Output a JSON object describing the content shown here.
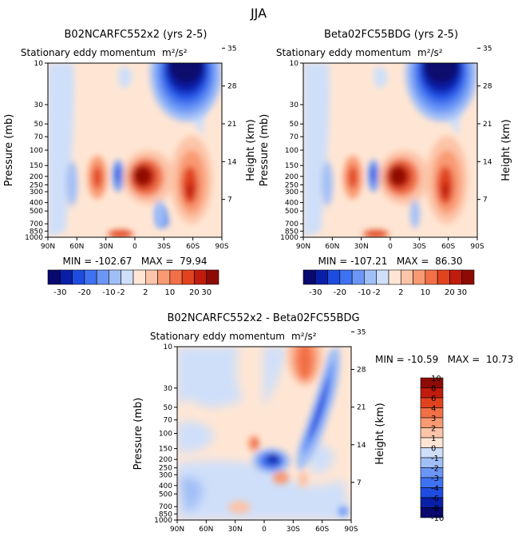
{
  "figure_title": "JJA",
  "chart_data": [
    {
      "type": "heatmap",
      "title": "B02NCARFC552x2 (yrs 2-5)",
      "subtitle": "Stationary eddy momentum",
      "units": "m²/s²",
      "ylabel": "Pressure (mb)",
      "ylabel_right": "Height (km)",
      "x_ticks": [
        "90N",
        "60N",
        "30N",
        "0",
        "30S",
        "60S",
        "90S"
      ],
      "y_ticks": [
        "10",
        "30",
        "50",
        "70",
        "100",
        "150",
        "200",
        "250",
        "300",
        "400",
        "500",
        "700",
        "850",
        "1000"
      ],
      "height_ticks": [
        "35",
        "28",
        "21",
        "14",
        "7"
      ],
      "stats": "MIN = -102.67   MAX =  79.94",
      "colorbar_labels": [
        "-30",
        "-20",
        "-10",
        "-2",
        "2",
        "10",
        "20",
        "30"
      ]
    },
    {
      "type": "heatmap",
      "title": "Beta02FC55BDG (yrs 2-5)",
      "subtitle": "Stationary eddy momentum",
      "units": "m²/s²",
      "ylabel": "Pressure (mb)",
      "ylabel_right": "Height (km)",
      "x_ticks": [
        "90N",
        "60N",
        "30N",
        "0",
        "30S",
        "60S",
        "90S"
      ],
      "y_ticks": [
        "10",
        "30",
        "50",
        "70",
        "100",
        "150",
        "200",
        "250",
        "300",
        "400",
        "500",
        "700",
        "850",
        "1000"
      ],
      "height_ticks": [
        "35",
        "28",
        "21",
        "14",
        "7"
      ],
      "stats": "MIN = -107.21   MAX =  86.30",
      "colorbar_labels": [
        "-30",
        "-20",
        "-10",
        "-2",
        "2",
        "10",
        "20",
        "30"
      ]
    },
    {
      "type": "heatmap",
      "title": "B02NCARFC552x2 - Beta02FC55BDG",
      "subtitle": "Stationary eddy momentum",
      "units": "m²/s²",
      "ylabel": "Pressure (mb)",
      "ylabel_right": "Height (km)",
      "x_ticks": [
        "90N",
        "60N",
        "30N",
        "0",
        "30S",
        "60S",
        "90S"
      ],
      "y_ticks": [
        "10",
        "30",
        "50",
        "70",
        "100",
        "150",
        "200",
        "250",
        "300",
        "400",
        "500",
        "700",
        "850",
        "1000"
      ],
      "height_ticks": [
        "35",
        "28",
        "21",
        "14",
        "7"
      ],
      "stats": "MIN = -10.59   MAX =  10.73",
      "colorbar_labels": [
        "10",
        "8",
        "6",
        "4",
        "3",
        "2",
        "1",
        "0",
        "-1",
        "-2",
        "-3",
        "-4",
        "-6",
        "-8",
        "-10"
      ]
    }
  ],
  "palette_div": [
    "#08086e",
    "#0a1fa8",
    "#1f4ce0",
    "#3f72f0",
    "#6b96f5",
    "#a1bff7",
    "#cfdff9",
    "#ffe6d4",
    "#fcc4a8",
    "#f99a72",
    "#f27047",
    "#e1431f",
    "#c01c0d",
    "#8e0b05"
  ]
}
